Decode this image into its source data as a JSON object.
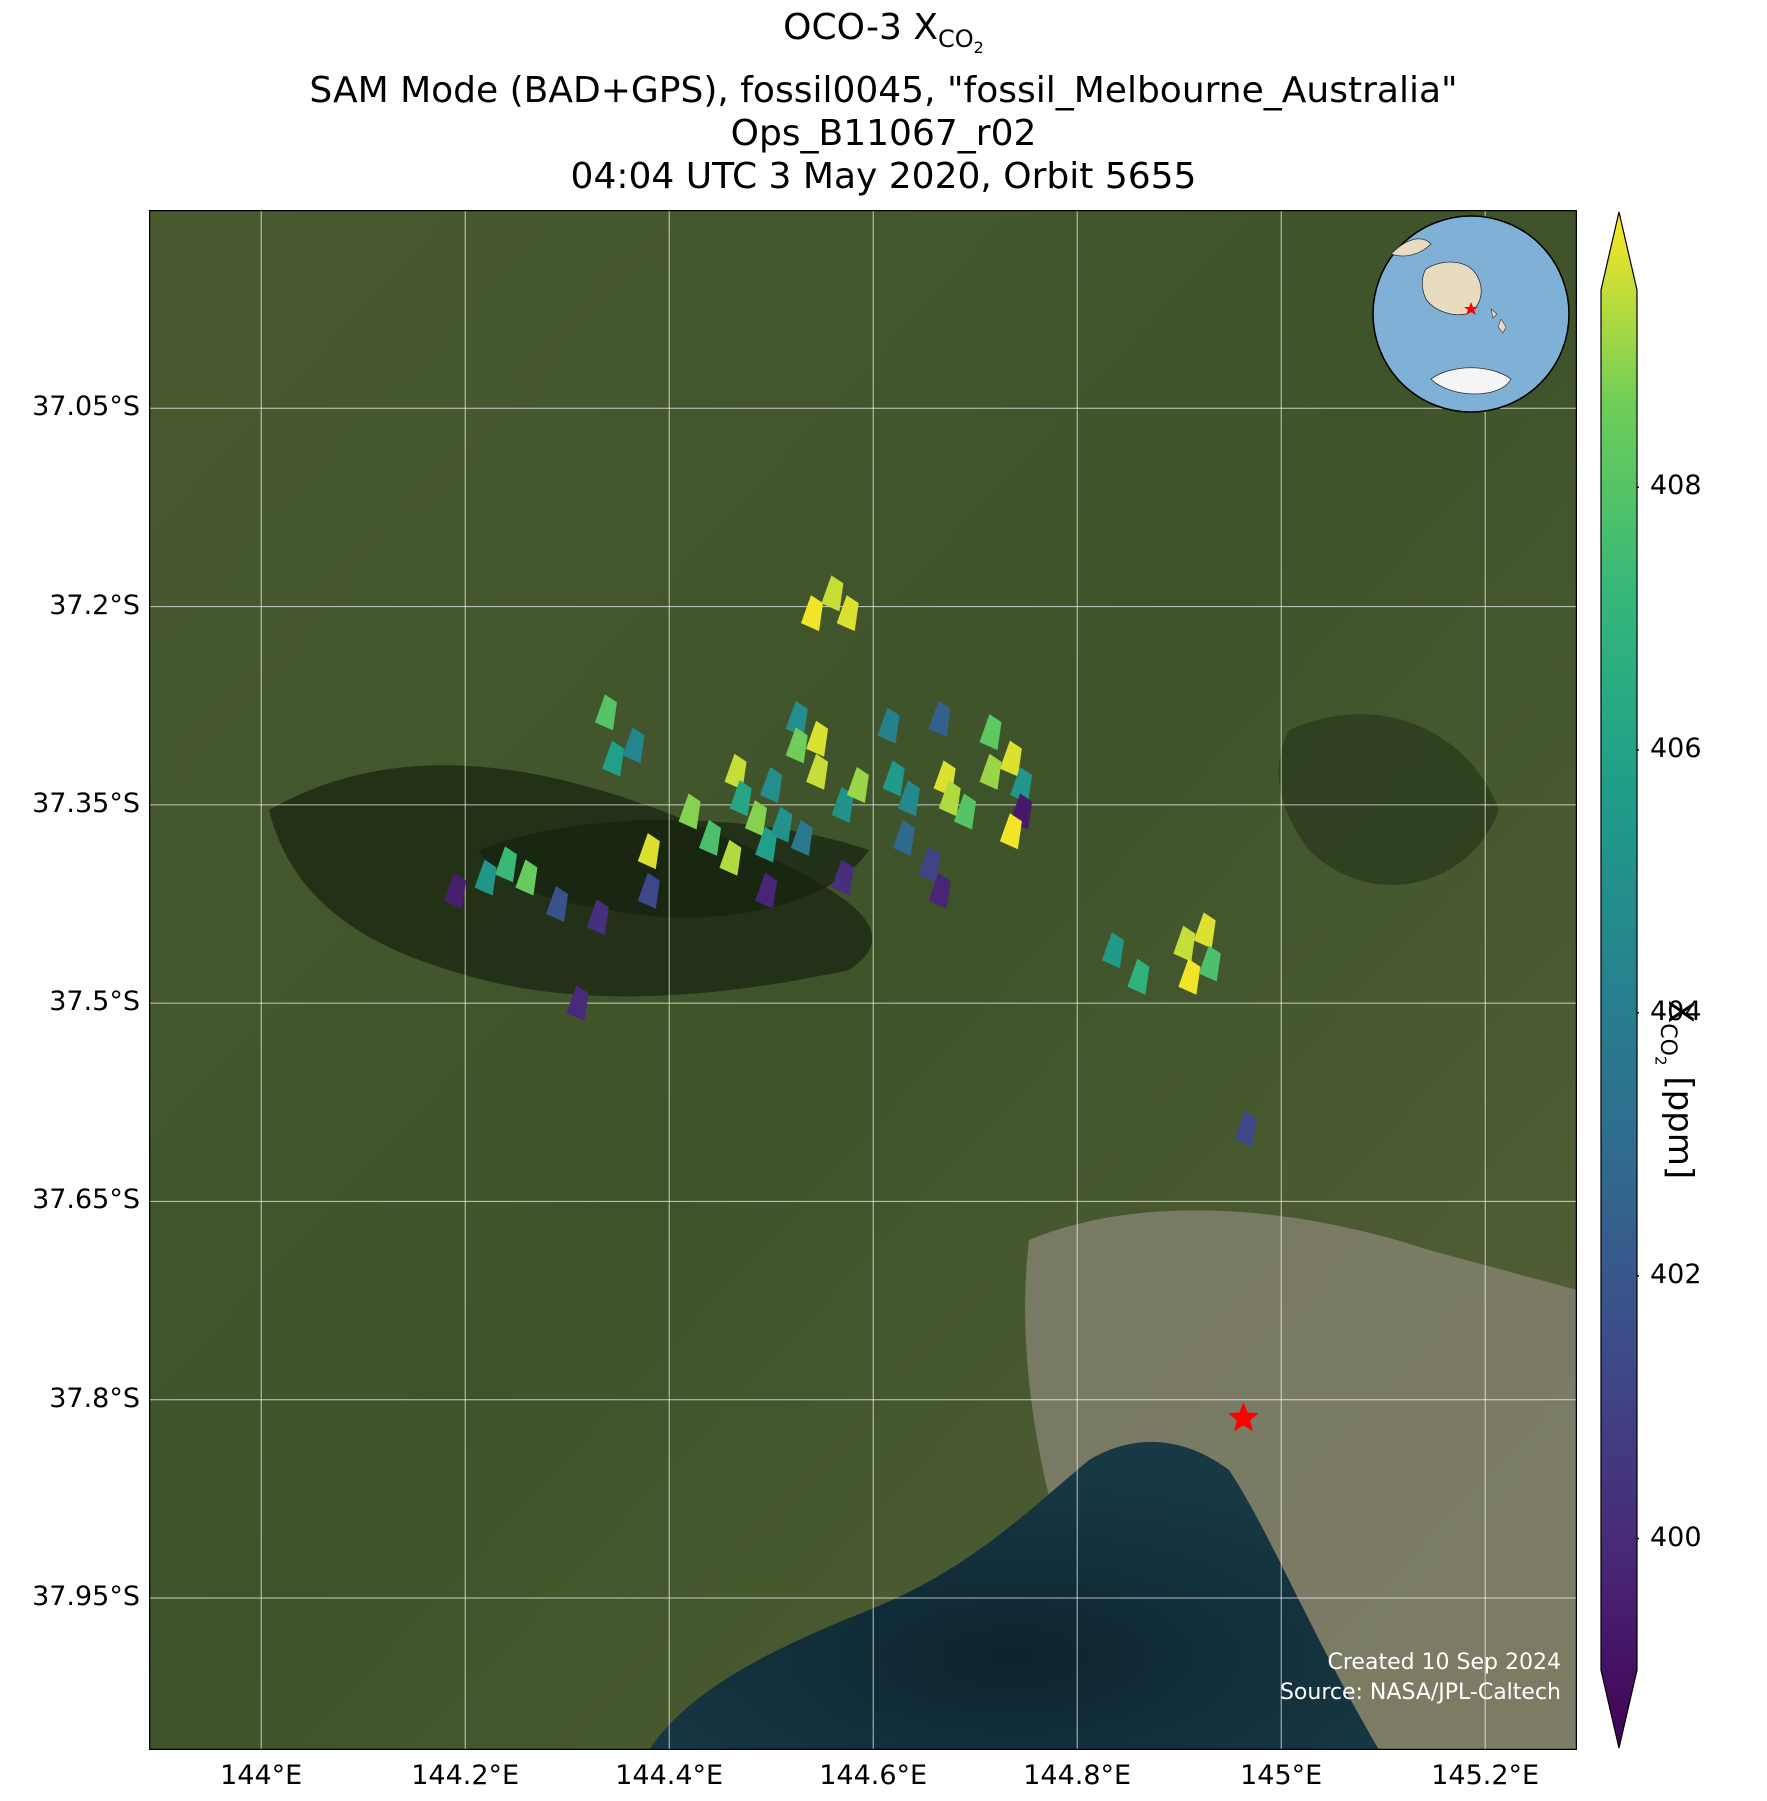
{
  "title": {
    "line1_prefix": "OCO-3 X",
    "line1_sub": "CO",
    "line1_sub2": "2",
    "line2": "SAM Mode (BAD+GPS), fossil0045, \"fossil_Melbourne_Australia\"",
    "line3": "Ops_B11067_r02",
    "line4": "04:04 UTC 3 May 2020, Orbit 5655"
  },
  "map": {
    "lon_range": [
      143.89,
      145.29
    ],
    "lat_range": [
      -38.065,
      -36.9
    ],
    "lat_ticks": [
      {
        "value": -37.05,
        "label": "37.05°S"
      },
      {
        "value": -37.2,
        "label": "37.2°S"
      },
      {
        "value": -37.35,
        "label": "37.35°S"
      },
      {
        "value": -37.5,
        "label": "37.5°S"
      },
      {
        "value": -37.65,
        "label": "37.65°S"
      },
      {
        "value": -37.8,
        "label": "37.8°S"
      },
      {
        "value": -37.95,
        "label": "37.95°S"
      }
    ],
    "lon_ticks": [
      {
        "value": 144.0,
        "label": "144°E"
      },
      {
        "value": 144.2,
        "label": "144.2°E"
      },
      {
        "value": 144.4,
        "label": "144.4°E"
      },
      {
        "value": 144.6,
        "label": "144.6°E"
      },
      {
        "value": 144.8,
        "label": "144.8°E"
      },
      {
        "value": 145.0,
        "label": "145°E"
      },
      {
        "value": 145.2,
        "label": "145.2°E"
      }
    ],
    "target_marker": {
      "lon": 144.963,
      "lat": -37.814,
      "color": "#ff0000",
      "icon": "star-icon"
    },
    "credit_line1": "Created 10 Sep 2024",
    "credit_line2": "Source: NASA/JPL-Caltech"
  },
  "colorbar": {
    "range": [
      399,
      409.5
    ],
    "ticks": [
      {
        "value": 400,
        "label": "400"
      },
      {
        "value": 402,
        "label": "402"
      },
      {
        "value": 404,
        "label": "404"
      },
      {
        "value": 406,
        "label": "406"
      },
      {
        "value": 408,
        "label": "408"
      }
    ],
    "label_prefix": "X",
    "label_sub": "CO",
    "label_sub2": "2",
    "label_suffix": " [ppm]",
    "colormap": "viridis"
  },
  "soundings": [
    {
      "lon": 144.54,
      "lat": -37.205,
      "xco2": 409.4
    },
    {
      "lon": 144.56,
      "lat": -37.19,
      "xco2": 409.0
    },
    {
      "lon": 144.575,
      "lat": -37.205,
      "xco2": 409.2
    },
    {
      "lon": 144.338,
      "lat": -37.28,
      "xco2": 407.6
    },
    {
      "lon": 144.345,
      "lat": -37.315,
      "xco2": 405.6
    },
    {
      "lon": 144.365,
      "lat": -37.305,
      "xco2": 404.4
    },
    {
      "lon": 144.24,
      "lat": -37.395,
      "xco2": 407.0
    },
    {
      "lon": 144.26,
      "lat": -37.405,
      "xco2": 408.0
    },
    {
      "lon": 144.22,
      "lat": -37.405,
      "xco2": 405.2
    },
    {
      "lon": 144.19,
      "lat": -37.415,
      "xco2": 400.0
    },
    {
      "lon": 144.29,
      "lat": -37.425,
      "xco2": 402.0
    },
    {
      "lon": 144.33,
      "lat": -37.435,
      "xco2": 400.6
    },
    {
      "lon": 144.31,
      "lat": -37.5,
      "xco2": 400.4
    },
    {
      "lon": 144.38,
      "lat": -37.385,
      "xco2": 409.2
    },
    {
      "lon": 144.38,
      "lat": -37.415,
      "xco2": 401.6
    },
    {
      "lon": 144.465,
      "lat": -37.325,
      "xco2": 409.0
    },
    {
      "lon": 144.47,
      "lat": -37.345,
      "xco2": 406.0
    },
    {
      "lon": 144.485,
      "lat": -37.36,
      "xco2": 408.4
    },
    {
      "lon": 144.5,
      "lat": -37.335,
      "xco2": 404.8
    },
    {
      "lon": 144.42,
      "lat": -37.355,
      "xco2": 408.4
    },
    {
      "lon": 144.44,
      "lat": -37.375,
      "xco2": 407.4
    },
    {
      "lon": 144.46,
      "lat": -37.39,
      "xco2": 408.8
    },
    {
      "lon": 144.495,
      "lat": -37.38,
      "xco2": 405.6
    },
    {
      "lon": 144.51,
      "lat": -37.365,
      "xco2": 405.0
    },
    {
      "lon": 144.53,
      "lat": -37.375,
      "xco2": 403.8
    },
    {
      "lon": 144.495,
      "lat": -37.415,
      "xco2": 400.2
    },
    {
      "lon": 144.525,
      "lat": -37.285,
      "xco2": 404.8
    },
    {
      "lon": 144.525,
      "lat": -37.305,
      "xco2": 408.2
    },
    {
      "lon": 144.545,
      "lat": -37.3,
      "xco2": 409.2
    },
    {
      "lon": 144.545,
      "lat": -37.325,
      "xco2": 409.0
    },
    {
      "lon": 144.57,
      "lat": -37.35,
      "xco2": 405.0
    },
    {
      "lon": 144.585,
      "lat": -37.335,
      "xco2": 408.6
    },
    {
      "lon": 144.57,
      "lat": -37.405,
      "xco2": 400.6
    },
    {
      "lon": 144.615,
      "lat": -37.29,
      "xco2": 404.2
    },
    {
      "lon": 144.62,
      "lat": -37.33,
      "xco2": 405.4
    },
    {
      "lon": 144.635,
      "lat": -37.345,
      "xco2": 404.6
    },
    {
      "lon": 144.63,
      "lat": -37.375,
      "xco2": 403.0
    },
    {
      "lon": 144.655,
      "lat": -37.395,
      "xco2": 401.4
    },
    {
      "lon": 144.67,
      "lat": -37.33,
      "xco2": 409.2
    },
    {
      "lon": 144.675,
      "lat": -37.345,
      "xco2": 408.8
    },
    {
      "lon": 144.69,
      "lat": -37.355,
      "xco2": 407.6
    },
    {
      "lon": 144.665,
      "lat": -37.285,
      "xco2": 402.6
    },
    {
      "lon": 144.715,
      "lat": -37.295,
      "xco2": 407.8
    },
    {
      "lon": 144.715,
      "lat": -37.325,
      "xco2": 408.6
    },
    {
      "lon": 144.735,
      "lat": -37.315,
      "xco2": 409.2
    },
    {
      "lon": 144.745,
      "lat": -37.335,
      "xco2": 405.2
    },
    {
      "lon": 144.745,
      "lat": -37.355,
      "xco2": 399.8
    },
    {
      "lon": 144.735,
      "lat": -37.37,
      "xco2": 409.4
    },
    {
      "lon": 144.665,
      "lat": -37.415,
      "xco2": 400.2
    },
    {
      "lon": 144.835,
      "lat": -37.46,
      "xco2": 405.4
    },
    {
      "lon": 144.86,
      "lat": -37.48,
      "xco2": 406.6
    },
    {
      "lon": 144.905,
      "lat": -37.455,
      "xco2": 409.0
    },
    {
      "lon": 144.91,
      "lat": -37.48,
      "xco2": 409.4
    },
    {
      "lon": 144.925,
      "lat": -37.445,
      "xco2": 409.2
    },
    {
      "lon": 144.93,
      "lat": -37.47,
      "xco2": 407.4
    },
    {
      "lon": 144.965,
      "lat": -37.595,
      "xco2": 401.6
    }
  ]
}
